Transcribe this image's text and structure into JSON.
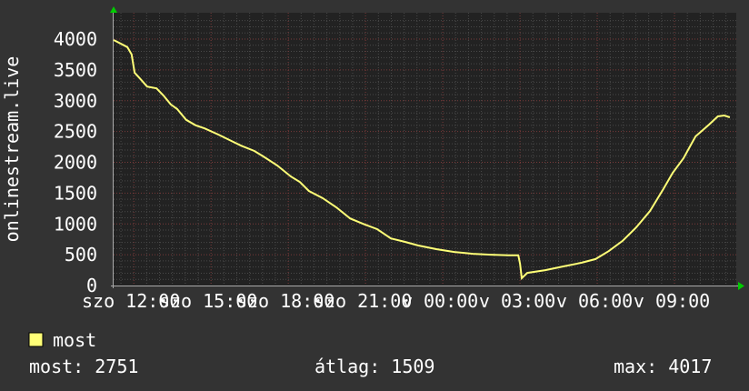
{
  "chart_data": {
    "type": "line",
    "title": "",
    "ylabel": "onlinestream.live",
    "xlabel": "",
    "ylim": [
      0,
      4000
    ],
    "yticks": [
      0,
      500,
      1000,
      1500,
      2000,
      2500,
      3000,
      3500,
      4000
    ],
    "xlim": [
      "szo 11:13",
      "v 11:24"
    ],
    "xtick_labels": [
      "szo 12:00",
      "szo 15:00",
      "szo 18:00",
      "szo 21:00",
      "v 00:00",
      "v 03:00",
      "v 06:00",
      "v 09:00"
    ],
    "grid": true,
    "legend_placement": "bottom-left",
    "colors": {
      "background": "#333333",
      "plot": "#222222",
      "line": "#ffff77",
      "grid_minor": "#4a4a4a",
      "grid_major": "#7a3a3a",
      "arrow": "#00cc00",
      "text": "#ffffff"
    },
    "series": [
      {
        "name": "most",
        "x": [
          "szo 11:13",
          "szo 11:45",
          "szo 11:55",
          "szo 12:02",
          "szo 12:17",
          "szo 12:31",
          "szo 12:53",
          "szo 13:09",
          "szo 13:26",
          "szo 13:41",
          "szo 14:02",
          "szo 14:24",
          "szo 14:45",
          "szo 15:17",
          "szo 15:48",
          "szo 16:10",
          "szo 16:41",
          "szo 17:02",
          "szo 17:34",
          "szo 18:06",
          "szo 18:27",
          "szo 18:48",
          "szo 19:20",
          "szo 19:52",
          "szo 20:24",
          "szo 20:55",
          "szo 21:27",
          "szo 21:59",
          "szo 22:31",
          "szo 23:03",
          "szo 23:45",
          "v 00:27",
          "v 01:10",
          "v 01:52",
          "v 02:34",
          "v 02:56",
          "v 03:00",
          "v 03:04",
          "v 03:17",
          "v 03:59",
          "v 04:41",
          "v 05:24",
          "v 05:56",
          "v 06:27",
          "v 06:59",
          "v 07:31",
          "v 08:03",
          "v 08:34",
          "v 08:56",
          "v 09:21",
          "v 09:49",
          "v 10:20",
          "v 10:41",
          "v 10:56",
          "v 11:09"
        ],
        "y": [
          3985,
          3870,
          3750,
          3455,
          3340,
          3230,
          3200,
          3085,
          2940,
          2865,
          2690,
          2600,
          2550,
          2450,
          2345,
          2270,
          2185,
          2095,
          1950,
          1770,
          1680,
          1535,
          1420,
          1270,
          1090,
          1000,
          915,
          765,
          710,
          650,
          590,
          545,
          515,
          500,
          490,
          490,
          355,
          120,
          205,
          250,
          310,
          370,
          430,
          560,
          725,
          945,
          1210,
          1565,
          1830,
          2065,
          2420,
          2610,
          2745,
          2760,
          2730
        ]
      }
    ]
  },
  "legend": {
    "swatch_color": "#ffff77",
    "label": "most"
  },
  "stats": {
    "current": "most: 2751",
    "average": "átlag: 1509",
    "max": "max: 4017"
  }
}
